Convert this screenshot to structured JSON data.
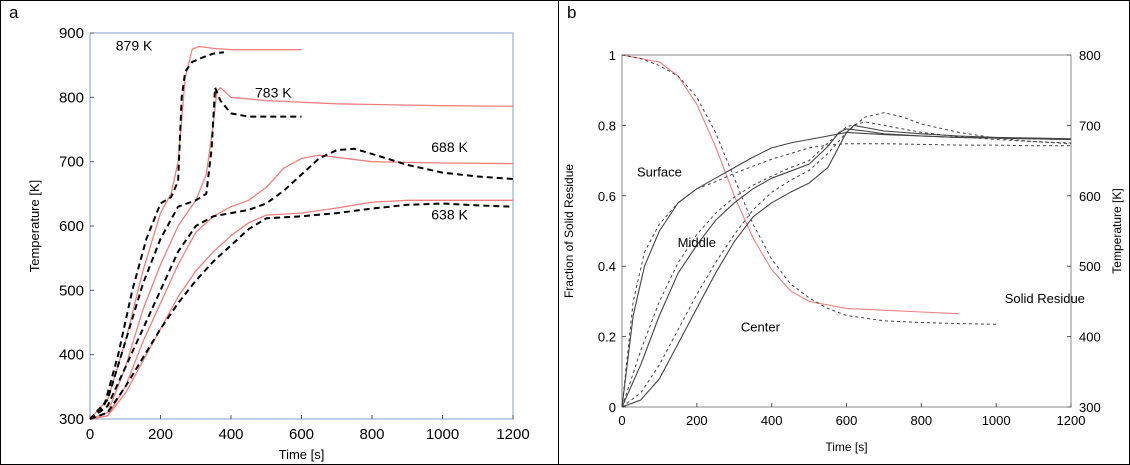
{
  "colors": {
    "model": "#f08080",
    "experiment": "#000000",
    "line_b": "#444444",
    "frame_a": "#7f9fc8",
    "frame_b": "#888888"
  },
  "chart_data": [
    {
      "type": "line",
      "panel_label": "a",
      "xlabel": "Time [s]",
      "ylabel": "Temperature [K]",
      "xlim": [
        0,
        1200
      ],
      "ylim": [
        300,
        900
      ],
      "xticks": [
        0,
        200,
        400,
        600,
        800,
        1000,
        1200
      ],
      "yticks": [
        300,
        400,
        500,
        600,
        700,
        800,
        900
      ],
      "grid": false,
      "annotations": [
        {
          "text": "879 K",
          "x": 125,
          "y": 873
        },
        {
          "text": "783 K",
          "x": 520,
          "y": 800
        },
        {
          "text": "688 K",
          "x": 1020,
          "y": 715
        },
        {
          "text": "638 K",
          "x": 1020,
          "y": 610
        }
      ],
      "series": [
        {
          "style": "solid",
          "color": "#f08080",
          "x": [
            0,
            50,
            100,
            150,
            200,
            230,
            250,
            270,
            290,
            310,
            350,
            400,
            500,
            600
          ],
          "y": [
            300,
            330,
            420,
            530,
            620,
            650,
            700,
            830,
            875,
            879,
            876,
            874,
            874,
            874
          ]
        },
        {
          "style": "dashed",
          "color": "#000000",
          "x": [
            0,
            40,
            80,
            120,
            160,
            200,
            230,
            250,
            260,
            270,
            290,
            320,
            350,
            380
          ],
          "y": [
            300,
            320,
            400,
            500,
            580,
            635,
            645,
            670,
            800,
            840,
            855,
            862,
            868,
            870
          ]
        },
        {
          "style": "solid",
          "color": "#f08080",
          "x": [
            0,
            50,
            100,
            150,
            200,
            250,
            300,
            330,
            350,
            360,
            370,
            400,
            500,
            700,
            1000,
            1200
          ],
          "y": [
            300,
            310,
            380,
            470,
            540,
            600,
            640,
            680,
            760,
            810,
            815,
            800,
            795,
            790,
            787,
            786
          ]
        },
        {
          "style": "dashed",
          "color": "#000000",
          "x": [
            0,
            50,
            100,
            150,
            200,
            250,
            300,
            330,
            345,
            355,
            370,
            400,
            450,
            600
          ],
          "y": [
            300,
            330,
            420,
            510,
            580,
            630,
            640,
            650,
            720,
            815,
            795,
            775,
            770,
            770
          ]
        },
        {
          "style": "solid",
          "color": "#f08080",
          "x": [
            0,
            50,
            100,
            150,
            200,
            250,
            300,
            350,
            400,
            450,
            500,
            550,
            600,
            650,
            800,
            1000,
            1200
          ],
          "y": [
            300,
            305,
            350,
            420,
            480,
            540,
            590,
            615,
            630,
            640,
            660,
            690,
            705,
            710,
            700,
            698,
            697
          ]
        },
        {
          "style": "dashed",
          "color": "#000000",
          "x": [
            0,
            50,
            100,
            150,
            200,
            250,
            300,
            350,
            400,
            450,
            500,
            550,
            600,
            650,
            700,
            750,
            800,
            900,
            1000,
            1100,
            1200
          ],
          "y": [
            300,
            320,
            380,
            440,
            500,
            560,
            600,
            615,
            620,
            625,
            635,
            655,
            680,
            705,
            718,
            720,
            712,
            695,
            683,
            677,
            673
          ]
        },
        {
          "style": "solid",
          "color": "#f08080",
          "x": [
            0,
            50,
            100,
            150,
            200,
            250,
            300,
            350,
            400,
            450,
            500,
            600,
            700,
            800,
            900,
            1000,
            1200
          ],
          "y": [
            300,
            305,
            340,
            390,
            440,
            490,
            530,
            560,
            585,
            605,
            617,
            620,
            628,
            637,
            640,
            640,
            640
          ]
        },
        {
          "style": "dashed",
          "color": "#000000",
          "x": [
            0,
            50,
            100,
            150,
            200,
            250,
            300,
            350,
            400,
            450,
            500,
            600,
            700,
            800,
            900,
            1000,
            1100,
            1200
          ],
          "y": [
            300,
            310,
            350,
            395,
            440,
            480,
            515,
            545,
            570,
            595,
            612,
            615,
            620,
            627,
            633,
            635,
            632,
            630
          ]
        }
      ]
    },
    {
      "type": "line",
      "panel_label": "b",
      "xlabel": "Time [s]",
      "ylabel": "Fraction of Solid Residue",
      "ylabel_right": "Temperature [K]",
      "xlim": [
        0,
        1200
      ],
      "ylim": [
        0,
        1
      ],
      "ylim_right": [
        300,
        800
      ],
      "xticks": [
        0,
        200,
        400,
        600,
        800,
        1000,
        1200
      ],
      "yticks": [
        0,
        0.2,
        0.4,
        0.6,
        0.8,
        1
      ],
      "yticks_right": [
        300,
        400,
        500,
        600,
        700,
        800
      ],
      "grid": false,
      "annotations": [
        {
          "text": "Surface",
          "x": 100,
          "y": 0.655
        },
        {
          "text": "Middle",
          "x": 200,
          "y": 0.455
        },
        {
          "text": "Center",
          "x": 370,
          "y": 0.215
        },
        {
          "text": "Solid Residue",
          "x": 1130,
          "y": 0.295
        }
      ],
      "series": [
        {
          "style": "solid",
          "color": "#f08080",
          "axis": "left",
          "x": [
            0,
            50,
            100,
            150,
            200,
            250,
            300,
            350,
            400,
            450,
            500,
            550,
            600,
            700,
            800,
            900
          ],
          "y": [
            1,
            0.99,
            0.98,
            0.94,
            0.86,
            0.74,
            0.6,
            0.48,
            0.39,
            0.33,
            0.3,
            0.29,
            0.28,
            0.275,
            0.27,
            0.265
          ]
        },
        {
          "style": "dashed",
          "color": "#444444",
          "axis": "left",
          "x": [
            0,
            50,
            100,
            150,
            200,
            250,
            300,
            350,
            400,
            450,
            500,
            550,
            600,
            700,
            800,
            900,
            1000
          ],
          "y": [
            1,
            0.99,
            0.97,
            0.94,
            0.88,
            0.78,
            0.65,
            0.52,
            0.42,
            0.35,
            0.31,
            0.28,
            0.26,
            0.245,
            0.24,
            0.237,
            0.235
          ]
        },
        {
          "style": "solid",
          "color": "#444444",
          "axis": "right",
          "x": [
            0,
            30,
            60,
            100,
            150,
            200,
            250,
            300,
            350,
            400,
            450,
            500,
            550,
            600,
            700,
            800,
            900,
            1000,
            1100,
            1200
          ],
          "y": [
            300,
            430,
            500,
            550,
            590,
            610,
            625,
            640,
            655,
            668,
            675,
            680,
            685,
            690,
            687,
            685,
            683,
            682,
            681,
            680
          ]
        },
        {
          "style": "dashed",
          "color": "#444444",
          "axis": "right",
          "x": [
            0,
            30,
            60,
            100,
            150,
            200,
            250,
            300,
            350,
            400,
            450,
            500,
            550,
            600,
            700,
            800,
            900,
            1000,
            1100,
            1200
          ],
          "y": [
            300,
            450,
            520,
            560,
            590,
            610,
            620,
            632,
            642,
            652,
            660,
            668,
            672,
            674,
            674,
            673,
            672,
            672,
            671,
            671
          ]
        },
        {
          "style": "solid",
          "color": "#444444",
          "axis": "right",
          "x": [
            0,
            50,
            100,
            150,
            200,
            250,
            300,
            350,
            400,
            450,
            500,
            550,
            580,
            600,
            650,
            700,
            800,
            900,
            1000,
            1100,
            1200
          ],
          "y": [
            300,
            360,
            430,
            490,
            530,
            565,
            590,
            610,
            625,
            635,
            645,
            670,
            690,
            695,
            692,
            688,
            685,
            683,
            682,
            681,
            680
          ]
        },
        {
          "style": "dashed",
          "color": "#444444",
          "axis": "right",
          "x": [
            0,
            50,
            100,
            150,
            200,
            250,
            300,
            350,
            400,
            450,
            500,
            550,
            600,
            650,
            700,
            800,
            900,
            1000,
            1100,
            1200
          ],
          "y": [
            300,
            380,
            450,
            505,
            545,
            575,
            598,
            615,
            628,
            640,
            650,
            675,
            698,
            705,
            700,
            690,
            684,
            680,
            677,
            675
          ]
        },
        {
          "style": "solid",
          "color": "#444444",
          "axis": "right",
          "x": [
            0,
            50,
            100,
            150,
            200,
            250,
            300,
            350,
            400,
            450,
            500,
            550,
            600,
            620,
            650,
            700,
            800,
            900,
            1000,
            1100,
            1200
          ],
          "y": [
            300,
            310,
            340,
            390,
            440,
            490,
            535,
            570,
            590,
            605,
            618,
            640,
            690,
            700,
            697,
            692,
            688,
            685,
            683,
            682,
            681
          ]
        },
        {
          "style": "dashed",
          "color": "#444444",
          "axis": "right",
          "x": [
            0,
            50,
            100,
            150,
            200,
            250,
            300,
            350,
            400,
            450,
            500,
            550,
            600,
            650,
            700,
            750,
            800,
            900,
            1000,
            1100,
            1200
          ],
          "y": [
            300,
            320,
            360,
            410,
            460,
            505,
            545,
            580,
            605,
            622,
            636,
            660,
            690,
            712,
            718,
            712,
            702,
            690,
            682,
            677,
            674
          ]
        }
      ]
    }
  ]
}
